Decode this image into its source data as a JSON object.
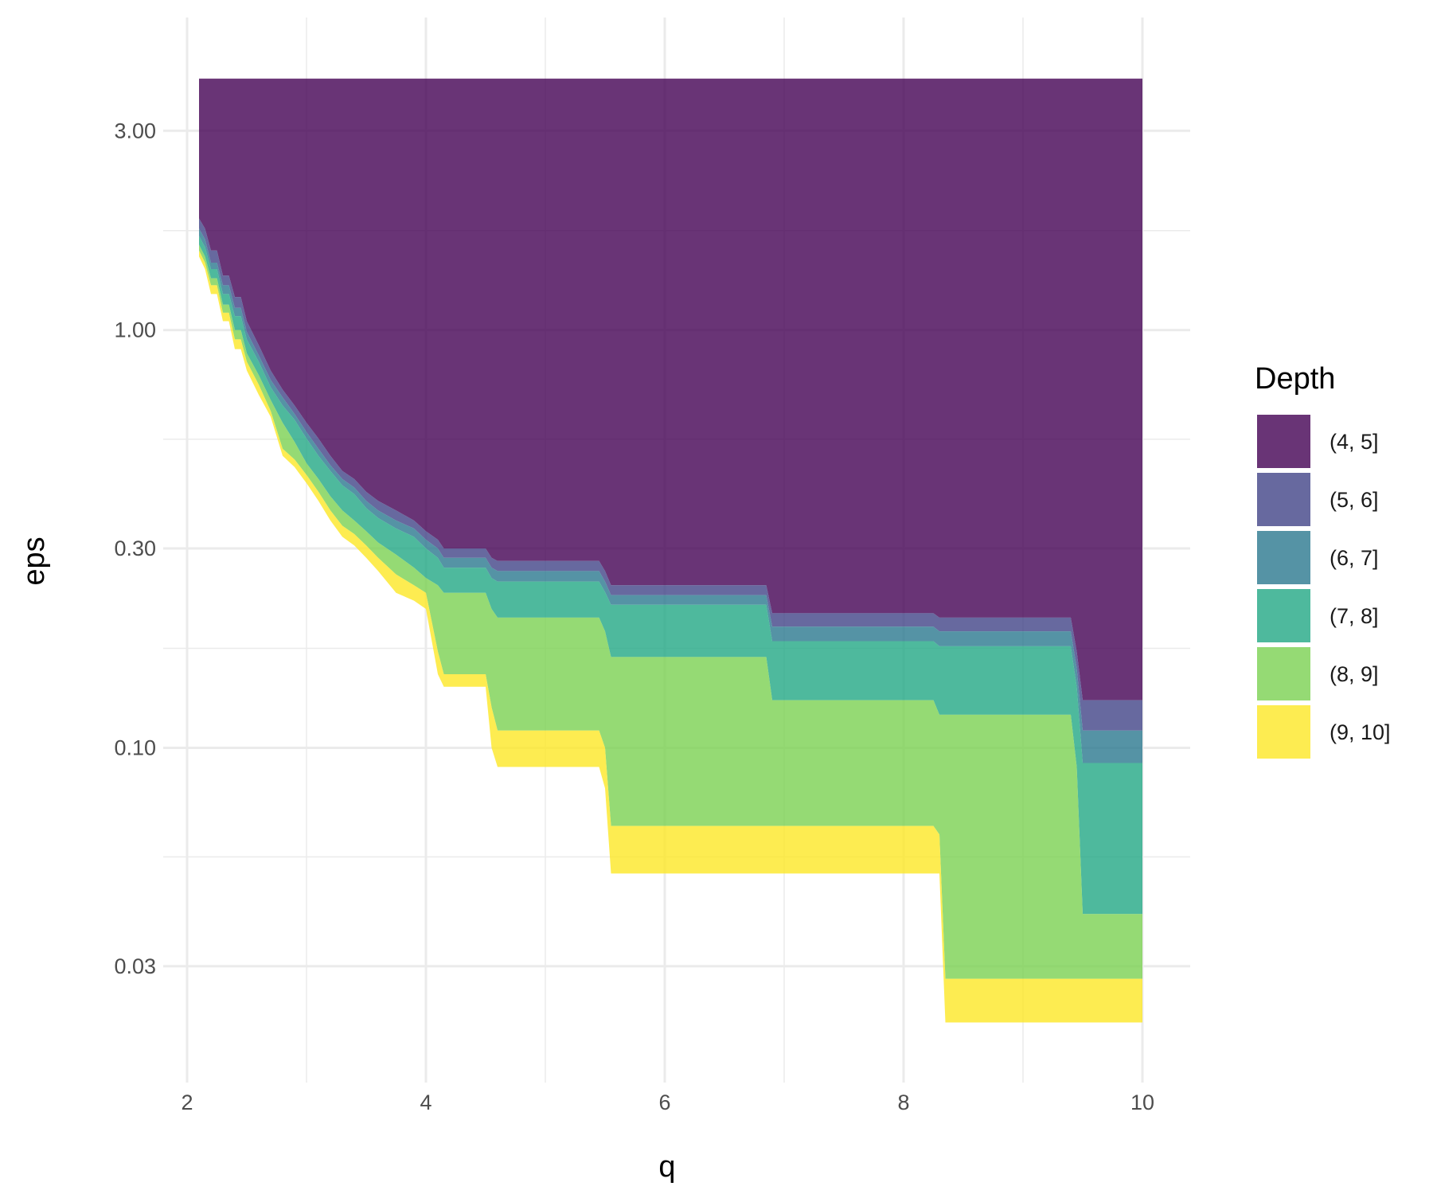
{
  "chart_data": {
    "type": "area",
    "title": "",
    "xlabel": "q",
    "ylabel": "eps",
    "x_scale": "linear",
    "y_scale": "log10",
    "xlim": [
      1.8,
      10.4
    ],
    "ylim": [
      0.0158,
      5.6
    ],
    "x_ticks": [
      2,
      4,
      6,
      8,
      10
    ],
    "x_tick_labels": [
      "2",
      "4",
      "6",
      "8",
      "10"
    ],
    "x_minor_ticks": [
      3,
      5,
      7,
      9
    ],
    "y_ticks": [
      0.03,
      0.1,
      0.3,
      1.0,
      3.0
    ],
    "y_tick_labels": [
      "0.03",
      "0.10",
      "0.30",
      "1.00",
      "3.00"
    ],
    "y_minor_ticks": [
      0.0548,
      0.173,
      0.548,
      1.73
    ],
    "grid": true,
    "legend": {
      "title": "Depth",
      "placement": "right"
    },
    "y_top": 4.0,
    "x": [
      2.1,
      2.15,
      2.2,
      2.25,
      2.3,
      2.35,
      2.4,
      2.45,
      2.5,
      2.6,
      2.7,
      2.8,
      2.9,
      3.0,
      3.1,
      3.2,
      3.3,
      3.4,
      3.5,
      3.6,
      3.75,
      3.9,
      4.0,
      4.1,
      4.15,
      4.5,
      4.55,
      4.6,
      5.45,
      5.5,
      5.55,
      6.85,
      6.9,
      8.25,
      8.3,
      8.35,
      9.4,
      9.45,
      9.5,
      10.0
    ],
    "series": [
      {
        "name": "(4, 5]",
        "color": "#440154",
        "boundary": [
          1.85,
          1.75,
          1.55,
          1.55,
          1.35,
          1.35,
          1.2,
          1.2,
          1.05,
          0.92,
          0.8,
          0.72,
          0.66,
          0.6,
          0.55,
          0.5,
          0.46,
          0.44,
          0.41,
          0.39,
          0.37,
          0.35,
          0.33,
          0.315,
          0.3,
          0.3,
          0.285,
          0.28,
          0.28,
          0.265,
          0.245,
          0.245,
          0.21,
          0.21,
          0.205,
          0.205,
          0.205,
          0.17,
          0.13,
          0.13
        ]
      },
      {
        "name": "(5, 6]",
        "color": "#414487",
        "boundary": [
          1.75,
          1.65,
          1.45,
          1.45,
          1.28,
          1.28,
          1.13,
          1.13,
          0.99,
          0.87,
          0.76,
          0.69,
          0.63,
          0.57,
          0.52,
          0.475,
          0.44,
          0.42,
          0.39,
          0.37,
          0.35,
          0.335,
          0.315,
          0.3,
          0.285,
          0.285,
          0.27,
          0.265,
          0.265,
          0.25,
          0.232,
          0.232,
          0.195,
          0.195,
          0.19,
          0.19,
          0.19,
          0.155,
          0.11,
          0.11
        ]
      },
      {
        "name": "(6, 7]",
        "color": "#2a788e",
        "boundary": [
          1.68,
          1.58,
          1.4,
          1.4,
          1.22,
          1.22,
          1.08,
          1.08,
          0.95,
          0.84,
          0.73,
          0.66,
          0.61,
          0.55,
          0.5,
          0.46,
          0.425,
          0.405,
          0.375,
          0.355,
          0.335,
          0.32,
          0.3,
          0.285,
          0.27,
          0.27,
          0.255,
          0.25,
          0.25,
          0.236,
          0.22,
          0.22,
          0.18,
          0.18,
          0.175,
          0.175,
          0.175,
          0.14,
          0.092,
          0.092
        ]
      },
      {
        "name": "(7, 8]",
        "color": "#22a884",
        "boundary": [
          1.6,
          1.5,
          1.33,
          1.33,
          1.15,
          1.15,
          1.0,
          1.0,
          0.88,
          0.78,
          0.68,
          0.6,
          0.54,
          0.48,
          0.44,
          0.4,
          0.37,
          0.35,
          0.33,
          0.31,
          0.29,
          0.27,
          0.255,
          0.245,
          0.235,
          0.235,
          0.215,
          0.205,
          0.205,
          0.19,
          0.165,
          0.165,
          0.13,
          0.13,
          0.12,
          0.12,
          0.12,
          0.09,
          0.04,
          0.04
        ]
      },
      {
        "name": "(8, 9]",
        "color": "#7ad151",
        "boundary": [
          1.55,
          1.45,
          1.28,
          1.28,
          1.1,
          1.1,
          0.95,
          0.95,
          0.84,
          0.74,
          0.64,
          0.52,
          0.49,
          0.45,
          0.41,
          0.37,
          0.34,
          0.325,
          0.305,
          0.285,
          0.26,
          0.245,
          0.235,
          0.17,
          0.15,
          0.15,
          0.125,
          0.11,
          0.11,
          0.1,
          0.065,
          0.065,
          0.065,
          0.065,
          0.062,
          0.028,
          0.028,
          0.028,
          0.028,
          0.028
        ]
      },
      {
        "name": "(9, 10]",
        "color": "#fde725",
        "boundary": [
          1.5,
          1.4,
          1.22,
          1.22,
          1.05,
          1.05,
          0.9,
          0.9,
          0.8,
          0.7,
          0.62,
          0.5,
          0.47,
          0.43,
          0.39,
          0.35,
          0.32,
          0.305,
          0.285,
          0.265,
          0.235,
          0.225,
          0.215,
          0.15,
          0.14,
          0.14,
          0.1,
          0.09,
          0.09,
          0.08,
          0.05,
          0.05,
          0.05,
          0.05,
          0.05,
          0.022,
          0.022,
          0.022,
          0.022,
          0.022
        ]
      }
    ]
  }
}
